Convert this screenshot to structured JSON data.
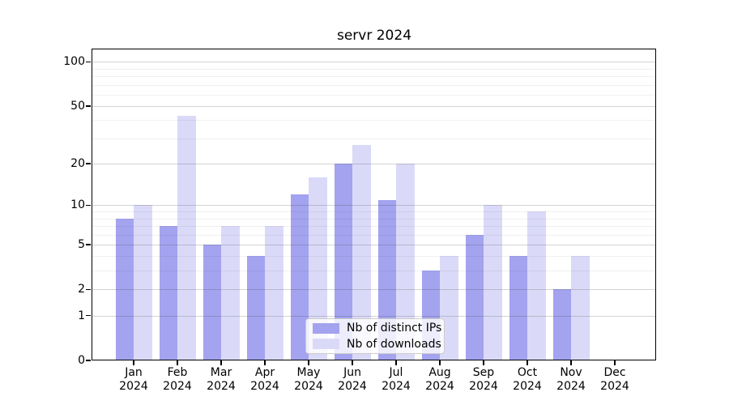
{
  "chart_data": {
    "type": "bar",
    "title": "servr 2024",
    "months": [
      "Jan",
      "Feb",
      "Mar",
      "Apr",
      "May",
      "Jun",
      "Jul",
      "Aug",
      "Sep",
      "Oct",
      "Nov",
      "Dec"
    ],
    "year": "2024",
    "series": [
      {
        "name": "Nb of distinct IPs",
        "color": "#a3a3ef",
        "values": [
          8,
          7,
          5,
          4,
          12,
          20,
          11,
          3,
          6,
          4,
          2,
          0
        ]
      },
      {
        "name": "Nb of downloads",
        "color": "#dadaf8",
        "values": [
          10,
          43,
          7,
          7,
          16,
          27,
          20,
          4,
          10,
          9,
          4,
          0
        ]
      }
    ],
    "yscale": "log1p",
    "ylim": [
      0,
      123
    ],
    "ytick_labels": [
      "0",
      "1",
      "2",
      "5",
      "10",
      "20",
      "50",
      "100"
    ],
    "yticks_major": [
      0,
      1,
      2,
      5,
      10,
      20,
      50,
      100
    ],
    "yticks_minor": [
      3,
      4,
      6,
      7,
      8,
      9,
      30,
      40,
      60,
      70,
      80,
      90
    ],
    "grid": true,
    "legend_position": "lower center"
  }
}
